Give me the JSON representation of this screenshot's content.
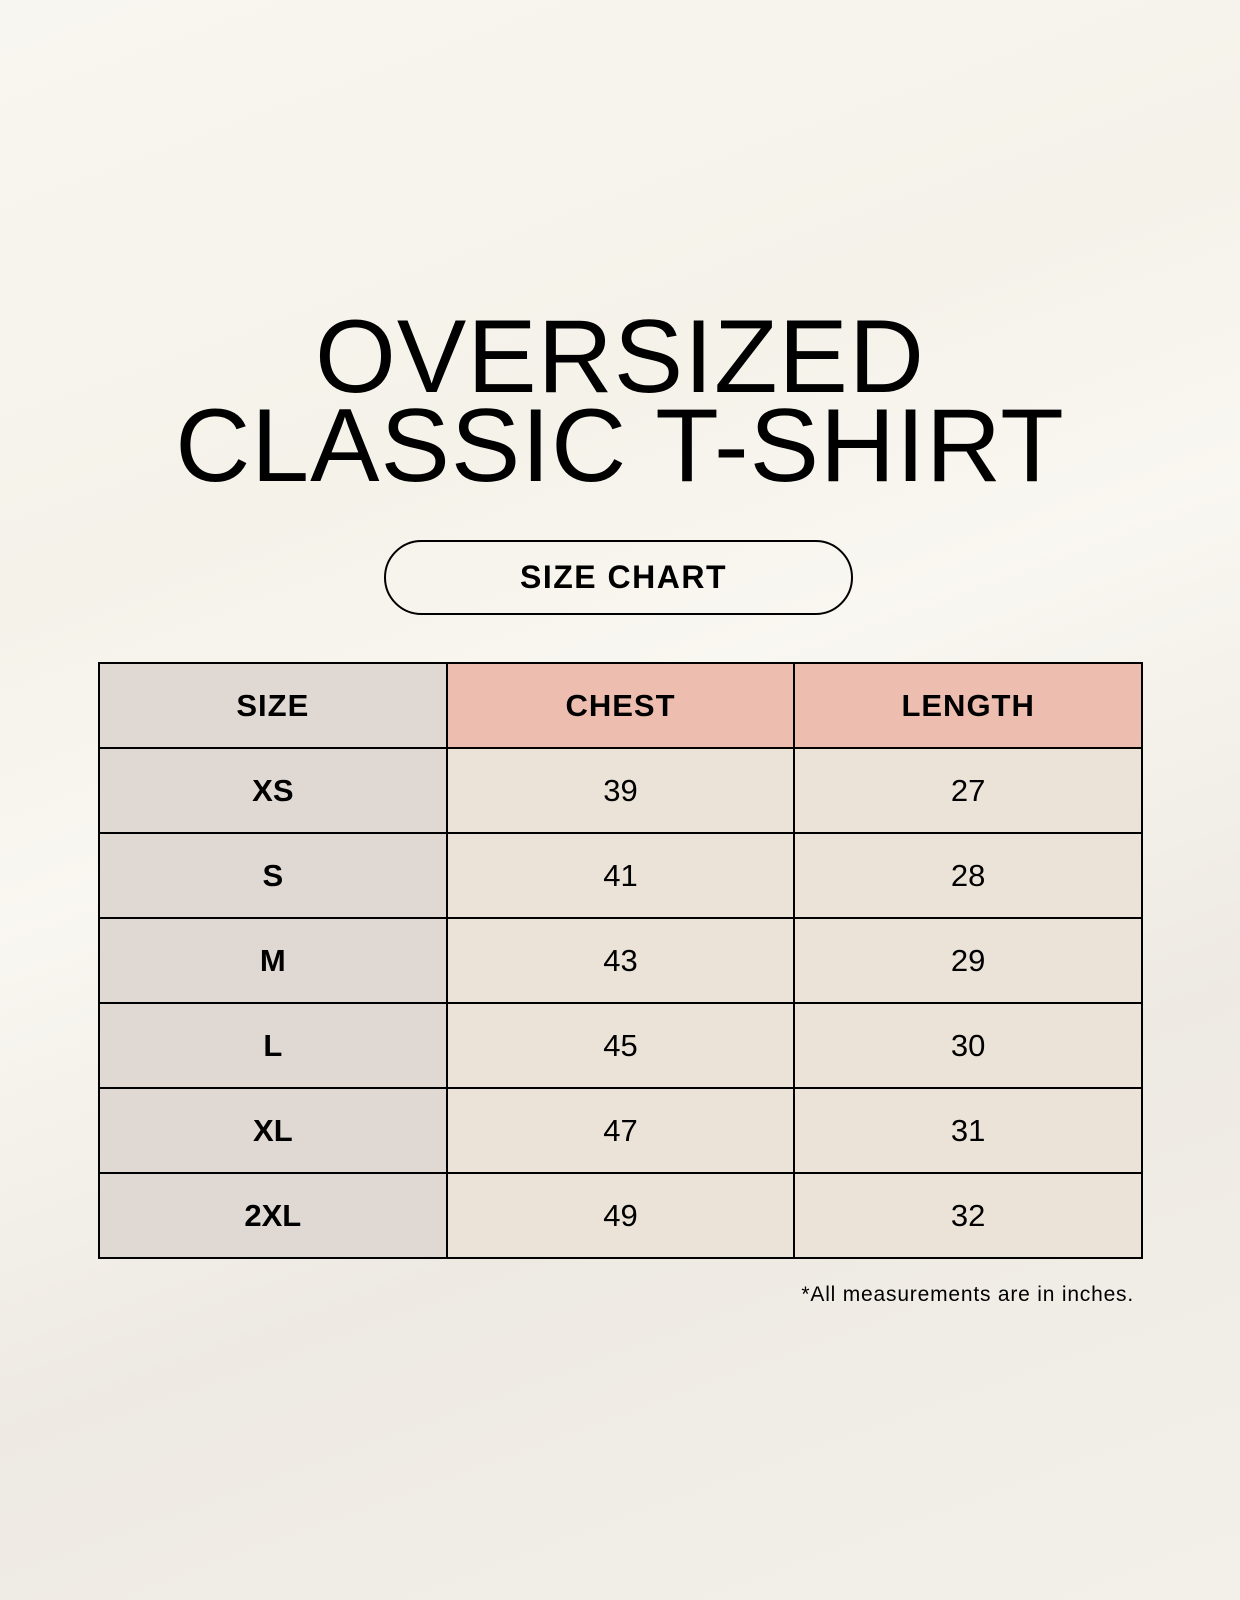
{
  "title": {
    "line1": "OVERSIZED",
    "line2": "CLASSIC T-SHIRT"
  },
  "badge": "SIZE CHART",
  "colors": {
    "size_column": "#e0d9d3",
    "header_accent": "#edbdaf",
    "cells": "#ebe3d8"
  },
  "table": {
    "headers": [
      "SIZE",
      "CHEST",
      "LENGTH"
    ],
    "rows": [
      {
        "size": "XS",
        "chest": "39",
        "length": "27"
      },
      {
        "size": "S",
        "chest": "41",
        "length": "28"
      },
      {
        "size": "M",
        "chest": "43",
        "length": "29"
      },
      {
        "size": "L",
        "chest": "45",
        "length": "30"
      },
      {
        "size": "XL",
        "chest": "47",
        "length": "31"
      },
      {
        "size": "2XL",
        "chest": "49",
        "length": "32"
      }
    ]
  },
  "footnote": "*All measurements are in inches."
}
